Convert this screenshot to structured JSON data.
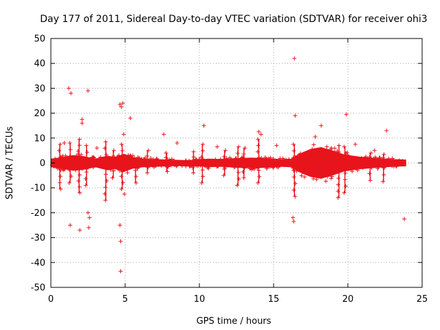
{
  "chart_data": {
    "type": "scatter",
    "title": "Day 177 of 2011, Sidereal Day-to-day VTEC variation (SDTVAR) for receiver ohi3",
    "xlabel": "GPS time / hours",
    "ylabel": "SDTVAR / TECUs",
    "xlim": [
      0,
      25
    ],
    "ylim": [
      -50,
      50
    ],
    "x_ticks": [
      0,
      5,
      10,
      15,
      20,
      25
    ],
    "y_ticks": [
      -50,
      -40,
      -30,
      -20,
      -10,
      0,
      10,
      20,
      30,
      40,
      50
    ],
    "grid": true,
    "legend": "none",
    "marker": "+",
    "series_color": "#e8141c",
    "band_profile": [
      {
        "x": 0.0,
        "half_width": 1.6
      },
      {
        "x": 0.8,
        "half_width": 2.2
      },
      {
        "x": 1.5,
        "half_width": 3.0
      },
      {
        "x": 2.2,
        "half_width": 2.6
      },
      {
        "x": 3.0,
        "half_width": 1.6
      },
      {
        "x": 3.8,
        "half_width": 2.8
      },
      {
        "x": 4.3,
        "half_width": 2.2
      },
      {
        "x": 4.9,
        "half_width": 3.5
      },
      {
        "x": 5.5,
        "half_width": 2.2
      },
      {
        "x": 6.2,
        "half_width": 1.6
      },
      {
        "x": 7.0,
        "half_width": 1.4
      },
      {
        "x": 8.0,
        "half_width": 1.2
      },
      {
        "x": 9.0,
        "half_width": 1.0
      },
      {
        "x": 10.0,
        "half_width": 1.2
      },
      {
        "x": 10.6,
        "half_width": 1.6
      },
      {
        "x": 11.5,
        "half_width": 1.4
      },
      {
        "x": 12.5,
        "half_width": 1.8
      },
      {
        "x": 13.5,
        "half_width": 2.0
      },
      {
        "x": 14.5,
        "half_width": 1.8
      },
      {
        "x": 15.5,
        "half_width": 1.4
      },
      {
        "x": 16.2,
        "half_width": 1.6
      },
      {
        "x": 16.7,
        "half_width": 3.5
      },
      {
        "x": 17.5,
        "half_width": 5.5
      },
      {
        "x": 18.2,
        "half_width": 6.2
      },
      {
        "x": 19.0,
        "half_width": 4.8
      },
      {
        "x": 19.8,
        "half_width": 3.2
      },
      {
        "x": 20.8,
        "half_width": 2.4
      },
      {
        "x": 22.0,
        "half_width": 1.8
      },
      {
        "x": 23.0,
        "half_width": 1.4
      },
      {
        "x": 23.9,
        "half_width": 1.2
      }
    ],
    "spikes": [
      {
        "x": 0.6,
        "ymin": -10.5,
        "ymax": 7.5
      },
      {
        "x": 1.3,
        "ymin": -8.0,
        "ymax": 8.0
      },
      {
        "x": 1.9,
        "ymin": -12.0,
        "ymax": 9.5
      },
      {
        "x": 2.4,
        "ymin": -9.0,
        "ymax": 7.0
      },
      {
        "x": 3.7,
        "ymin": -15.0,
        "ymax": 8.5
      },
      {
        "x": 4.2,
        "ymin": -6.0,
        "ymax": 5.0
      },
      {
        "x": 4.8,
        "ymin": -10.5,
        "ymax": 7.5
      },
      {
        "x": 5.7,
        "ymin": -8.0,
        "ymax": 2.0
      },
      {
        "x": 6.5,
        "ymin": -4.0,
        "ymax": 5.0
      },
      {
        "x": 7.8,
        "ymin": -3.5,
        "ymax": 4.0
      },
      {
        "x": 9.6,
        "ymin": -4.0,
        "ymax": 4.5
      },
      {
        "x": 10.2,
        "ymin": -8.0,
        "ymax": 7.5
      },
      {
        "x": 11.7,
        "ymin": -5.0,
        "ymax": 5.0
      },
      {
        "x": 12.6,
        "ymin": -9.0,
        "ymax": 6.5
      },
      {
        "x": 13.0,
        "ymin": -6.0,
        "ymax": 6.0
      },
      {
        "x": 14.0,
        "ymin": -8.0,
        "ymax": 9.5
      },
      {
        "x": 16.4,
        "ymin": -13.5,
        "ymax": 7.5
      },
      {
        "x": 19.4,
        "ymin": -14.0,
        "ymax": 7.0
      },
      {
        "x": 19.8,
        "ymin": -12.0,
        "ymax": 6.5
      },
      {
        "x": 21.5,
        "ymin": -7.0,
        "ymax": 4.0
      },
      {
        "x": 22.4,
        "ymin": -7.5,
        "ymax": 3.5
      }
    ],
    "outliers": [
      {
        "x": 1.2,
        "y": 30.0
      },
      {
        "x": 1.35,
        "y": 28.0
      },
      {
        "x": 2.5,
        "y": 29.0
      },
      {
        "x": 2.1,
        "y": 17.5
      },
      {
        "x": 2.1,
        "y": 16.0
      },
      {
        "x": 4.65,
        "y": 23.5
      },
      {
        "x": 4.75,
        "y": 22.5
      },
      {
        "x": 4.85,
        "y": 24.0
      },
      {
        "x": 5.35,
        "y": 18.0
      },
      {
        "x": 10.3,
        "y": 15.0
      },
      {
        "x": 14.0,
        "y": 12.5
      },
      {
        "x": 14.15,
        "y": 11.5
      },
      {
        "x": 16.4,
        "y": 42.0
      },
      {
        "x": 16.45,
        "y": 19.0
      },
      {
        "x": 18.2,
        "y": 15.0
      },
      {
        "x": 19.9,
        "y": 19.5
      },
      {
        "x": 22.6,
        "y": 13.0
      },
      {
        "x": 7.6,
        "y": 11.5
      },
      {
        "x": 1.3,
        "y": -25.0
      },
      {
        "x": 1.95,
        "y": -27.0
      },
      {
        "x": 2.5,
        "y": -20.0
      },
      {
        "x": 2.6,
        "y": -22.0
      },
      {
        "x": 2.55,
        "y": -26.0
      },
      {
        "x": 4.65,
        "y": -25.0
      },
      {
        "x": 4.7,
        "y": -31.5
      },
      {
        "x": 4.7,
        "y": -43.5
      },
      {
        "x": 16.3,
        "y": -22.0
      },
      {
        "x": 16.35,
        "y": -23.5
      },
      {
        "x": 23.8,
        "y": -22.5
      },
      {
        "x": 4.9,
        "y": 11.5
      },
      {
        "x": 4.95,
        "y": -12.5
      },
      {
        "x": 8.5,
        "y": 8.0
      },
      {
        "x": 17.8,
        "y": 10.5
      },
      {
        "x": 20.5,
        "y": 7.5
      },
      {
        "x": 21.8,
        "y": 5.0
      },
      {
        "x": 0.9,
        "y": 8.0
      },
      {
        "x": 3.1,
        "y": 6.0
      },
      {
        "x": 11.2,
        "y": 6.5
      },
      {
        "x": 15.2,
        "y": 7.0
      }
    ]
  }
}
